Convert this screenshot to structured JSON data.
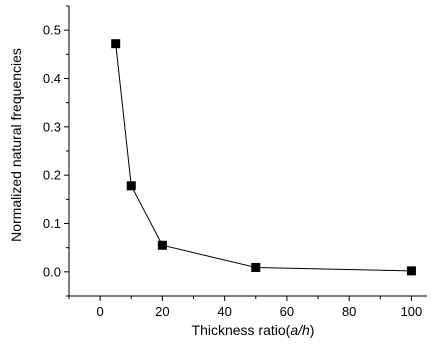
{
  "chart_data": {
    "type": "line",
    "xlabel_parts": [
      "Thickness ratio(",
      "a/h",
      ")"
    ],
    "ylabel": "Normalized natural frequencies",
    "xlim": [
      -10,
      105
    ],
    "ylim": [
      -0.05,
      0.55
    ],
    "x_ticks": [
      0,
      20,
      40,
      60,
      80,
      100
    ],
    "x_tick_labels": [
      "0",
      "20",
      "40",
      "60",
      "80",
      "100"
    ],
    "y_ticks": [
      0.0,
      0.1,
      0.2,
      0.3,
      0.4,
      0.5
    ],
    "y_tick_labels": [
      "0.0",
      "0.1",
      "0.2",
      "0.3",
      "0.4",
      "0.5"
    ],
    "grid": false,
    "marker": "square",
    "series": [
      {
        "x": [
          5,
          10,
          20,
          50,
          100
        ],
        "y": [
          0.472,
          0.178,
          0.055,
          0.009,
          0.002
        ],
        "color": "#000000"
      }
    ]
  }
}
